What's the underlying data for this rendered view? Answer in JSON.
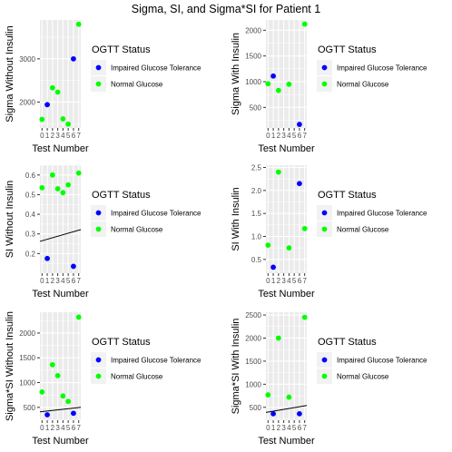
{
  "main_title": "Sigma, SI, and Sigma*SI for Patient 1",
  "colors": {
    "impaired": "#0000ff",
    "normal": "#00ff00",
    "panel_bg": "#ebebeb",
    "gridline": "#ffffff",
    "fit_line": "#000000"
  },
  "legend": {
    "title": "OGTT Status",
    "items": [
      {
        "label": "Impaired Glucose Tolerance",
        "color": "#0000ff"
      },
      {
        "label": "Normal Glucose",
        "color": "#00ff00"
      }
    ]
  },
  "chart_data": [
    {
      "type": "scatter",
      "title": "",
      "xlabel": "Test Number",
      "ylabel": "Sigma Without Insulin",
      "xlim": [
        -0.4,
        7.4
      ],
      "ylim": [
        1400,
        3900
      ],
      "xticks": [
        0,
        1,
        2,
        3,
        4,
        5,
        6,
        7
      ],
      "yticks": [
        2000,
        3000
      ],
      "grid": true,
      "legend_position": "right",
      "points": [
        {
          "x": 0,
          "y": 1600,
          "group": "Normal Glucose"
        },
        {
          "x": 1,
          "y": 1940,
          "group": "Impaired Glucose Tolerance"
        },
        {
          "x": 2,
          "y": 2330,
          "group": "Normal Glucose"
        },
        {
          "x": 3,
          "y": 2230,
          "group": "Normal Glucose"
        },
        {
          "x": 4,
          "y": 1610,
          "group": "Normal Glucose"
        },
        {
          "x": 5,
          "y": 1490,
          "group": "Normal Glucose"
        },
        {
          "x": 6,
          "y": 3000,
          "group": "Impaired Glucose Tolerance"
        },
        {
          "x": 7,
          "y": 3800,
          "group": "Normal Glucose"
        }
      ]
    },
    {
      "type": "scatter",
      "title": "",
      "xlabel": "Test Number",
      "ylabel": "Sigma With Insulin",
      "xlim": [
        -0.4,
        7.4
      ],
      "ylim": [
        100,
        2200
      ],
      "xticks": [
        0,
        1,
        2,
        3,
        4,
        5,
        6,
        7
      ],
      "yticks": [
        500,
        1000,
        1500,
        2000
      ],
      "grid": true,
      "legend_position": "right",
      "points": [
        {
          "x": 0,
          "y": 960,
          "group": "Normal Glucose"
        },
        {
          "x": 1,
          "y": 1110,
          "group": "Impaired Glucose Tolerance"
        },
        {
          "x": 2,
          "y": 830,
          "group": "Normal Glucose"
        },
        {
          "x": 4,
          "y": 950,
          "group": "Normal Glucose"
        },
        {
          "x": 6,
          "y": 170,
          "group": "Impaired Glucose Tolerance"
        },
        {
          "x": 7,
          "y": 2120,
          "group": "Normal Glucose"
        }
      ]
    },
    {
      "type": "scatter",
      "title": "",
      "xlabel": "Test Number",
      "ylabel": "SI Without Insulin",
      "xlim": [
        -0.4,
        7.4
      ],
      "ylim": [
        0.1,
        0.65
      ],
      "xticks": [
        0,
        1,
        2,
        3,
        4,
        5,
        6,
        7
      ],
      "yticks": [
        0.2,
        0.3,
        0.4,
        0.5,
        0.6
      ],
      "grid": true,
      "legend_position": "right",
      "points": [
        {
          "x": 0,
          "y": 0.535,
          "group": "Normal Glucose"
        },
        {
          "x": 1,
          "y": 0.175,
          "group": "Impaired Glucose Tolerance"
        },
        {
          "x": 2,
          "y": 0.6,
          "group": "Normal Glucose"
        },
        {
          "x": 3,
          "y": 0.53,
          "group": "Normal Glucose"
        },
        {
          "x": 4,
          "y": 0.51,
          "group": "Normal Glucose"
        },
        {
          "x": 5,
          "y": 0.55,
          "group": "Normal Glucose"
        },
        {
          "x": 6,
          "y": 0.135,
          "group": "Impaired Glucose Tolerance"
        },
        {
          "x": 7,
          "y": 0.61,
          "group": "Normal Glucose"
        }
      ],
      "fit_line": {
        "x": [
          -0.4,
          7.4
        ],
        "y": [
          0.262,
          0.322
        ]
      }
    },
    {
      "type": "scatter",
      "title": "",
      "xlabel": "Test Number",
      "ylabel": "SI With Insulin",
      "xlim": [
        -0.4,
        7.4
      ],
      "ylim": [
        0.2,
        2.55
      ],
      "xticks": [
        0,
        1,
        2,
        3,
        4,
        5,
        6,
        7
      ],
      "yticks": [
        0.5,
        1.0,
        1.5,
        2.0,
        2.5
      ],
      "ytick_labels": [
        "0.5",
        "1.0",
        "1.5",
        "2.0",
        "2.5"
      ],
      "grid": true,
      "legend_position": "right",
      "points": [
        {
          "x": 0,
          "y": 0.81,
          "group": "Normal Glucose"
        },
        {
          "x": 1,
          "y": 0.33,
          "group": "Impaired Glucose Tolerance"
        },
        {
          "x": 2,
          "y": 2.4,
          "group": "Normal Glucose"
        },
        {
          "x": 4,
          "y": 0.75,
          "group": "Normal Glucose"
        },
        {
          "x": 6,
          "y": 2.15,
          "group": "Impaired Glucose Tolerance"
        },
        {
          "x": 7,
          "y": 1.17,
          "group": "Normal Glucose"
        }
      ]
    },
    {
      "type": "scatter",
      "title": "",
      "xlabel": "Test Number",
      "ylabel": "Sigma*SI Without Insulin",
      "xlim": [
        -0.4,
        7.4
      ],
      "ylim": [
        240,
        2420
      ],
      "xticks": [
        0,
        1,
        2,
        3,
        4,
        5,
        6,
        7
      ],
      "yticks": [
        500,
        1000,
        1500,
        2000
      ],
      "grid": true,
      "legend_position": "right",
      "points": [
        {
          "x": 0,
          "y": 810,
          "group": "Normal Glucose"
        },
        {
          "x": 1,
          "y": 350,
          "group": "Impaired Glucose Tolerance"
        },
        {
          "x": 2,
          "y": 1360,
          "group": "Normal Glucose"
        },
        {
          "x": 3,
          "y": 1140,
          "group": "Normal Glucose"
        },
        {
          "x": 4,
          "y": 730,
          "group": "Normal Glucose"
        },
        {
          "x": 5,
          "y": 620,
          "group": "Normal Glucose"
        },
        {
          "x": 6,
          "y": 380,
          "group": "Impaired Glucose Tolerance"
        },
        {
          "x": 7,
          "y": 2320,
          "group": "Normal Glucose"
        }
      ],
      "fit_line": {
        "x": [
          -0.4,
          7.4
        ],
        "y": [
          410,
          500
        ]
      }
    },
    {
      "type": "scatter",
      "title": "",
      "xlabel": "Test Number",
      "ylabel": "Sigma*SI With Insulin",
      "xlim": [
        -0.4,
        7.4
      ],
      "ylim": [
        220,
        2560
      ],
      "xticks": [
        0,
        1,
        2,
        3,
        4,
        5,
        6,
        7
      ],
      "yticks": [
        500,
        1000,
        1500,
        2000,
        2500
      ],
      "grid": true,
      "legend_position": "right",
      "points": [
        {
          "x": 0,
          "y": 770,
          "group": "Normal Glucose"
        },
        {
          "x": 1,
          "y": 360,
          "group": "Impaired Glucose Tolerance"
        },
        {
          "x": 2,
          "y": 2000,
          "group": "Normal Glucose"
        },
        {
          "x": 4,
          "y": 720,
          "group": "Normal Glucose"
        },
        {
          "x": 6,
          "y": 360,
          "group": "Impaired Glucose Tolerance"
        },
        {
          "x": 7,
          "y": 2450,
          "group": "Normal Glucose"
        }
      ],
      "fit_line": {
        "x": [
          -0.4,
          7.4
        ],
        "y": [
          390,
          540
        ]
      }
    }
  ]
}
